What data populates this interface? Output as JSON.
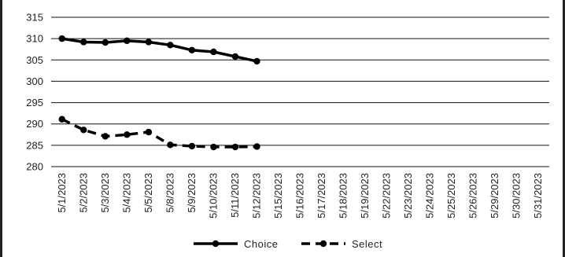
{
  "chart_data": {
    "type": "line",
    "title": "",
    "xlabel": "",
    "ylabel": "",
    "ylim": [
      280,
      315
    ],
    "yticks": [
      280,
      285,
      290,
      295,
      300,
      305,
      310,
      315
    ],
    "grid": "horizontal",
    "legend_position": "bottom",
    "categories": [
      "5/1/2023",
      "5/2/2023",
      "5/3/2023",
      "5/4/2023",
      "5/5/2023",
      "5/8/2023",
      "5/9/2023",
      "5/10/2023",
      "5/11/2023",
      "5/12/2023",
      "5/15/2023",
      "5/16/2023",
      "5/17/2023",
      "5/18/2023",
      "5/19/2023",
      "5/22/2023",
      "5/23/2023",
      "5/24/2023",
      "5/25/2023",
      "5/26/2023",
      "5/29/2023",
      "5/30/2023",
      "5/31/2023"
    ],
    "series": [
      {
        "name": "Choice",
        "style": "solid",
        "color": "#000000",
        "values": [
          310.0,
          309.2,
          309.1,
          309.5,
          309.2,
          308.5,
          307.3,
          306.9,
          305.8,
          304.7,
          null,
          null,
          null,
          null,
          null,
          null,
          null,
          null,
          null,
          null,
          null,
          null,
          null
        ]
      },
      {
        "name": "Select",
        "style": "dashed",
        "color": "#000000",
        "values": [
          291.1,
          288.6,
          287.1,
          287.5,
          288.1,
          285.1,
          284.8,
          284.6,
          284.6,
          284.7,
          null,
          null,
          null,
          null,
          null,
          null,
          null,
          null,
          null,
          null,
          null,
          null,
          null
        ]
      }
    ]
  }
}
